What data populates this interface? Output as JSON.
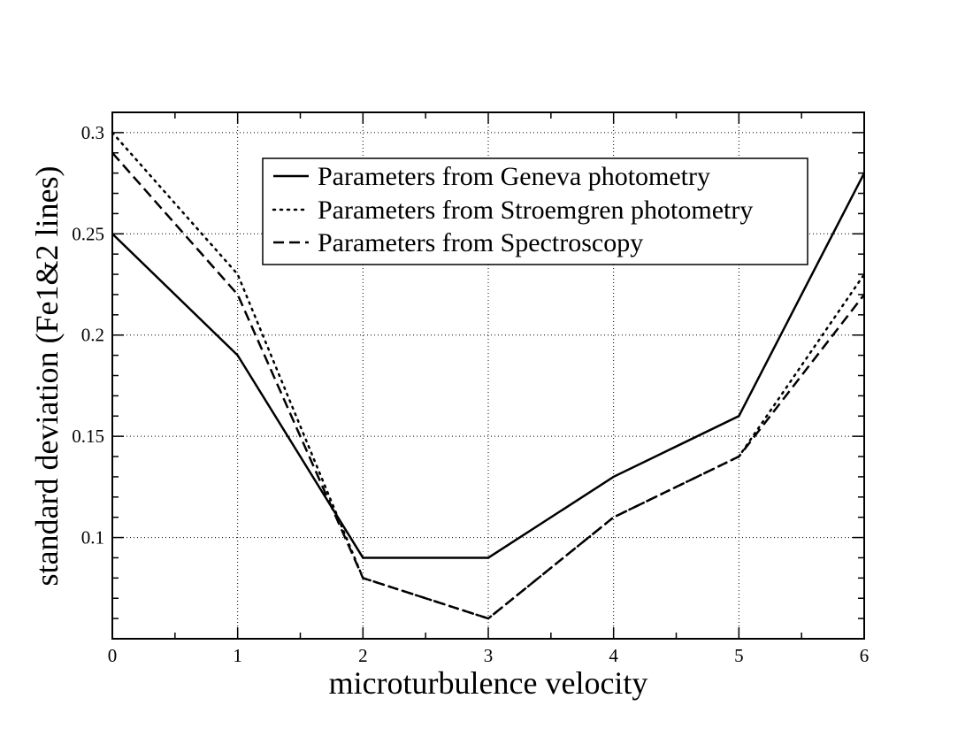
{
  "chart_data": {
    "type": "line",
    "title": "",
    "xlabel": "microturbulence velocity",
    "ylabel": "standard deviation (Fe1&2 lines)",
    "xlim": [
      0,
      6
    ],
    "ylim": [
      0.05,
      0.31
    ],
    "grid": true,
    "legend_position": "top-center",
    "x_ticks": [
      "0",
      "1",
      "2",
      "3",
      "4",
      "5",
      "6"
    ],
    "y_ticks": [
      "0.1",
      "0.15",
      "0.2",
      "0.25",
      "0.3"
    ],
    "series": [
      {
        "name": "Parameters from Geneva photometry",
        "style": "solid",
        "x": [
          0,
          1,
          2,
          3,
          4,
          5,
          6
        ],
        "values": [
          0.25,
          0.19,
          0.09,
          0.09,
          0.13,
          0.16,
          0.28
        ]
      },
      {
        "name": "Parameters from Stroemgren photometry",
        "style": "dotted",
        "x": [
          0,
          1,
          2,
          3,
          4,
          5,
          6
        ],
        "values": [
          0.3,
          0.23,
          0.08,
          0.06,
          0.11,
          0.14,
          0.23
        ]
      },
      {
        "name": "Parameters from Spectroscopy",
        "style": "dashed",
        "x": [
          0,
          1,
          2,
          3,
          4,
          5,
          6
        ],
        "values": [
          0.29,
          0.22,
          0.08,
          0.06,
          0.11,
          0.14,
          0.22
        ]
      }
    ]
  }
}
